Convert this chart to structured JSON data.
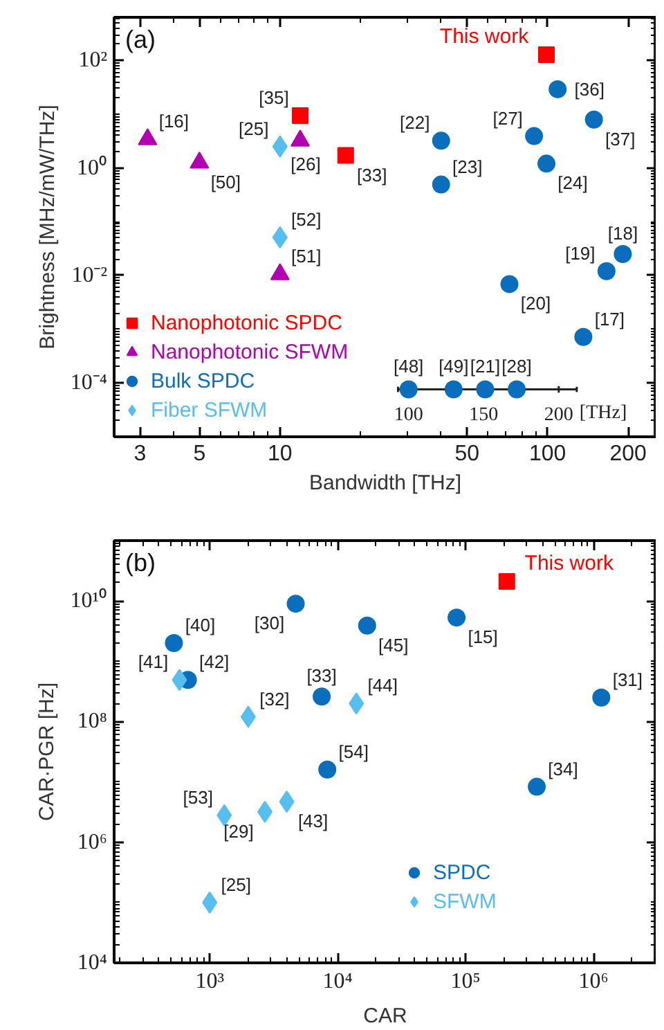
{
  "chart_data": [
    {
      "type": "scatter",
      "title": "(a)",
      "xlabel": "Bandwidth [THz]",
      "ylabel": "Brightness [MHz/mW/THz]",
      "log": "xy",
      "xlim": [
        2.4,
        255
      ],
      "ylim": [
        1e-05,
        630
      ],
      "xticks": [
        3,
        5,
        10,
        50,
        100,
        200
      ],
      "yticks": [
        {
          "value": 0.0001,
          "label": "10⁻⁴"
        },
        {
          "value": 0.01,
          "label": "10⁻²"
        },
        {
          "value": 1,
          "label": "10⁰"
        },
        {
          "value": 100,
          "label": "10²"
        }
      ],
      "x2lim": [
        -96,
        265
      ],
      "x2ticks": [
        100,
        150,
        200
      ],
      "x2label": "[THz]",
      "legend": "bottom left",
      "grid": false,
      "series": [
        {
          "name": "Nanophotonic SPDC",
          "color": "#ff0000",
          "marker": "square",
          "x": [
            11.9,
            17.6
          ],
          "values": [
            9.4,
            1.7
          ]
        },
        {
          "name": "Nanophotonic SFWM",
          "color": "#b000b0",
          "marker": "triangle",
          "x": [
            3.2,
            5.0,
            11.9,
            10
          ],
          "values": [
            3.4,
            1.25,
            3.2,
            0.0105
          ]
        },
        {
          "name": "Bulk SPDC",
          "color": "#0a6ebd",
          "marker": "circle",
          "x": [
            109,
            149,
            40,
            89,
            99,
            40,
            191,
            166,
            72,
            136
          ],
          "values": [
            29,
            7.9,
            3.2,
            3.9,
            1.2,
            0.49,
            0.025,
            0.012,
            0.0069,
            0.00072
          ]
        },
        {
          "name": "Fiber SFWM",
          "color": "#56bff0",
          "marker": "diamond",
          "x": [
            10,
            10
          ],
          "values": [
            2.5,
            0.051
          ]
        },
        {
          "color": "#ff0000",
          "marker": "square",
          "x": [
            99
          ],
          "values": [
            127
          ]
        },
        {
          "color": "#0a6ebd",
          "marker": "circle",
          "axis": "x2",
          "x": [
            100,
            130,
            151,
            172
          ],
          "values": [
            7.6e-05,
            7.6e-05,
            7.6e-05,
            7.6e-05
          ]
        }
      ],
      "annotations": [
        {
          "text": "[35]",
          "x": 11.9,
          "y": 9.4
        },
        {
          "text": "[33]",
          "x": 17.6,
          "y": 1.7
        },
        {
          "text": "[16]",
          "x": 3.2,
          "y": 3.4
        },
        {
          "text": "[50]",
          "x": 5.0,
          "y": 1.25
        },
        {
          "text": "[26]",
          "x": 11.9,
          "y": 3.2
        },
        {
          "text": "[51]",
          "x": 10,
          "y": 0.0105
        },
        {
          "text": "[36]",
          "x": 109,
          "y": 29
        },
        {
          "text": "[37]",
          "x": 149,
          "y": 7.9
        },
        {
          "text": "[22]",
          "x": 40,
          "y": 3.2
        },
        {
          "text": "[27]",
          "x": 89,
          "y": 3.9
        },
        {
          "text": "[24]",
          "x": 99,
          "y": 1.2
        },
        {
          "text": "[23]",
          "x": 40,
          "y": 0.49
        },
        {
          "text": "[18]",
          "x": 191,
          "y": 0.025
        },
        {
          "text": "[19]",
          "x": 166,
          "y": 0.012
        },
        {
          "text": "[20]",
          "x": 72,
          "y": 0.0069
        },
        {
          "text": "[17]",
          "x": 136,
          "y": 0.00072
        },
        {
          "text": "[25]",
          "x": 10,
          "y": 2.5
        },
        {
          "text": "[52]",
          "x": 10,
          "y": 0.051
        },
        {
          "text": "This work",
          "x": 99,
          "y": 127
        },
        "[48]",
        "[49]",
        "[21]",
        "[28]"
      ]
    },
    {
      "type": "scatter",
      "title": "(b)",
      "xlabel": "CAR",
      "ylabel": "CAR·PGR [Hz]",
      "log": "xy",
      "xlim": [
        179,
        3100000
      ],
      "ylim": [
        10000,
        100000000000
      ],
      "xticks": [
        {
          "value": 1000,
          "label": "10³"
        },
        {
          "value": 10000,
          "label": "10⁴"
        },
        {
          "value": 100000,
          "label": "10⁵"
        },
        {
          "value": 1000000,
          "label": "10⁶"
        }
      ],
      "yticks": [
        {
          "value": 10000,
          "label": "10⁴"
        },
        {
          "value": 1000000,
          "label": "10⁶"
        },
        {
          "value": 100000000,
          "label": "10⁸"
        },
        {
          "value": 10000000000,
          "label": "10¹⁰"
        }
      ],
      "legend": "bottom",
      "grid": false,
      "series": [
        {
          "name": "SPDC",
          "color": "#0a6ebd",
          "marker": "circle",
          "x": [
            525,
            675,
            4700,
            17000,
            85000,
            7500,
            1150000,
            8300,
            360000
          ],
          "values": [
            2000000000,
            490000000,
            9000000000,
            3900000000,
            5300000000,
            260000000,
            250000000,
            16000000,
            8300000
          ]
        },
        {
          "name": "SFWM",
          "color": "#56bff0",
          "marker": "diamond",
          "x": [
            580,
            2000,
            14000,
            1300,
            2700,
            4000,
            1000
          ],
          "values": [
            490000000,
            120000000,
            200000000,
            2800000,
            3200000,
            4700000,
            100000
          ]
        },
        {
          "color": "#ff0000",
          "marker": "square",
          "x": [
            210000
          ],
          "values": [
            21000000000
          ]
        }
      ],
      "annotations": [
        {
          "text": "[40]",
          "x": 525,
          "y": 2000000000
        },
        {
          "text": "[42]",
          "x": 675,
          "y": 490000000
        },
        {
          "text": "[30]",
          "x": 4700,
          "y": 9000000000
        },
        {
          "text": "[45]",
          "x": 17000,
          "y": 3900000000
        },
        {
          "text": "[15]",
          "x": 85000,
          "y": 5300000000
        },
        {
          "text": "[33]",
          "x": 7500,
          "y": 260000000
        },
        {
          "text": "[31]",
          "x": 1150000,
          "y": 250000000
        },
        {
          "text": "[54]",
          "x": 8300,
          "y": 16000000
        },
        {
          "text": "[34]",
          "x": 360000,
          "y": 8300000
        },
        {
          "text": "[41]",
          "x": 580,
          "y": 490000000
        },
        {
          "text": "[32]",
          "x": 2000,
          "y": 120000000
        },
        {
          "text": "[44]",
          "x": 14000,
          "y": 200000000
        },
        {
          "text": "[53]",
          "x": 1300,
          "y": 2800000
        },
        {
          "text": "[29]",
          "x": 2700,
          "y": 3200000
        },
        {
          "text": "[43]",
          "x": 4000,
          "y": 4700000
        },
        {
          "text": "[25]",
          "x": 1000,
          "y": 100000
        },
        {
          "text": "This work",
          "x": 210000,
          "y": 21000000000
        }
      ]
    }
  ]
}
